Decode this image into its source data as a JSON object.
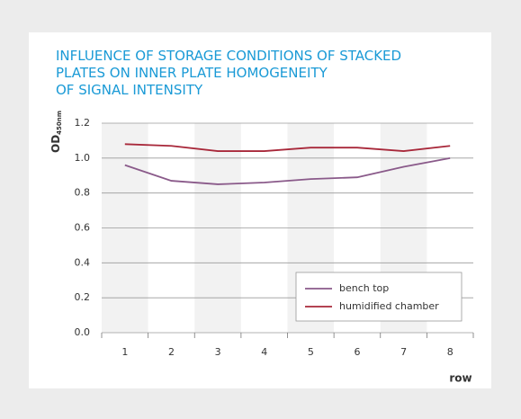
{
  "chart_data": {
    "type": "line",
    "title": [
      "INFLUENCE OF STORAGE CONDITIONS OF STACKED",
      "PLATES ON INNER PLATE HOMOGENEITY",
      "OF SIGNAL INTENSITY"
    ],
    "ylabel": "OD",
    "ylabel_sub": "450nm",
    "xlabel": "row",
    "categories": [
      "1",
      "2",
      "3",
      "4",
      "5",
      "6",
      "7",
      "8"
    ],
    "series": [
      {
        "name": "bench top",
        "color": "#8a5a8a",
        "values": [
          0.96,
          0.87,
          0.85,
          0.86,
          0.88,
          0.89,
          0.95,
          1.0
        ]
      },
      {
        "name": "humidified chamber",
        "color": "#a8283a",
        "values": [
          1.08,
          1.07,
          1.04,
          1.04,
          1.06,
          1.06,
          1.04,
          1.07
        ]
      }
    ],
    "ylim": [
      0,
      1.2
    ],
    "yticks": [
      {
        "value": 0,
        "label": "0.0"
      },
      0.2,
      0.4,
      0.6,
      0.8,
      {
        "value": 1,
        "label": "1.0"
      },
      1.2
    ],
    "grid": true,
    "legend": "lower right",
    "band_shading": true
  }
}
